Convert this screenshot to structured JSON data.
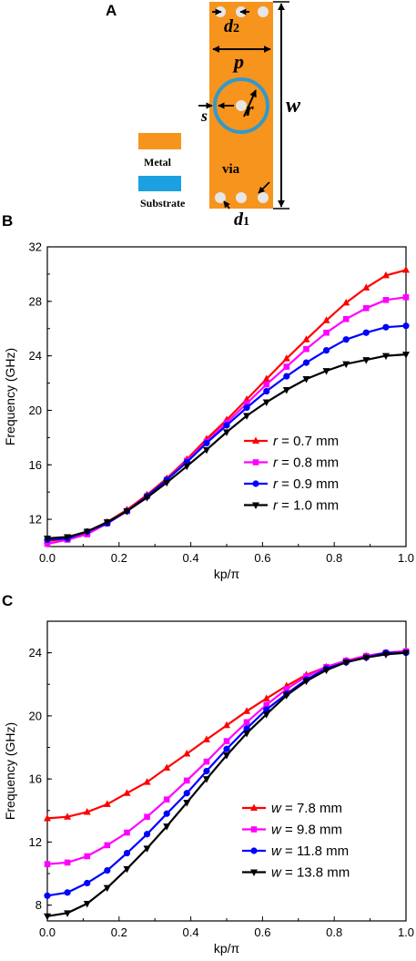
{
  "panels": {
    "a": "A",
    "b": "B",
    "c": "C"
  },
  "schematic": {
    "labels": {
      "d2": "d2",
      "p": "p",
      "r": "r",
      "s": "s",
      "w": "w",
      "via": "via",
      "d1": "d1"
    },
    "legend": [
      {
        "label": "Metal",
        "color": "#F7941D"
      },
      {
        "label": "Substrate",
        "color": "#1BA1E2"
      }
    ],
    "colors": {
      "metal": "#F7941D",
      "ring": "#3399CC",
      "via": "#E6E6E6"
    }
  },
  "chart_data": [
    {
      "type": "line",
      "panel": "B",
      "xlabel": "kp/π",
      "ylabel": "Frequency (GHz)",
      "xlim": [
        0.0,
        1.0
      ],
      "ylim": [
        10,
        32
      ],
      "xticks": [
        "0.0",
        "0.2",
        "0.4",
        "0.6",
        "0.8",
        "1.0"
      ],
      "yticks": [
        "12",
        "16",
        "20",
        "24",
        "28",
        "32"
      ],
      "legend_position": "bottom-right",
      "x": [
        0.0,
        0.056,
        0.111,
        0.167,
        0.222,
        0.278,
        0.333,
        0.389,
        0.444,
        0.5,
        0.556,
        0.611,
        0.667,
        0.722,
        0.778,
        0.833,
        0.889,
        0.944,
        1.0
      ],
      "series": [
        {
          "name": "r = 0.7 mm",
          "var": "r",
          "rest": " = 0.7 mm",
          "color": "#FF0000",
          "marker": "triangle-up",
          "values": [
            10.4,
            10.6,
            11.0,
            11.8,
            12.7,
            13.8,
            15.0,
            16.4,
            17.9,
            19.3,
            20.8,
            22.3,
            23.8,
            25.2,
            26.6,
            27.9,
            29.0,
            29.9,
            30.3
          ]
        },
        {
          "name": "r = 0.8 mm",
          "var": "r",
          "rest": " = 0.8 mm",
          "color": "#FF00FF",
          "marker": "square",
          "values": [
            10.2,
            10.5,
            10.9,
            11.7,
            12.6,
            13.7,
            14.9,
            16.3,
            17.7,
            19.1,
            20.5,
            21.9,
            23.2,
            24.5,
            25.7,
            26.7,
            27.5,
            28.1,
            28.3
          ]
        },
        {
          "name": "r = 0.9 mm",
          "var": "r",
          "rest": " = 0.9 mm",
          "color": "#0000FF",
          "marker": "circle",
          "values": [
            10.5,
            10.6,
            11.1,
            11.7,
            12.6,
            13.7,
            14.9,
            16.2,
            17.6,
            18.9,
            20.2,
            21.4,
            22.5,
            23.5,
            24.4,
            25.2,
            25.7,
            26.1,
            26.2
          ]
        },
        {
          "name": "r = 1.0 mm",
          "var": "r",
          "rest": " = 1.0 mm",
          "color": "#000000",
          "marker": "triangle-down",
          "values": [
            10.6,
            10.7,
            11.1,
            11.8,
            12.6,
            13.6,
            14.7,
            15.9,
            17.1,
            18.4,
            19.6,
            20.6,
            21.5,
            22.3,
            22.9,
            23.4,
            23.7,
            24.0,
            24.1
          ]
        }
      ]
    },
    {
      "type": "line",
      "panel": "C",
      "xlabel": "kp/π",
      "ylabel": "Frequency (GHz)",
      "xlim": [
        0.0,
        1.0
      ],
      "ylim": [
        7,
        26
      ],
      "xticks": [
        "0.0",
        "0.2",
        "0.4",
        "0.6",
        "0.8",
        "1.0"
      ],
      "yticks": [
        "8",
        "12",
        "16",
        "20",
        "24"
      ],
      "legend_position": "bottom-right",
      "x": [
        0.0,
        0.056,
        0.111,
        0.167,
        0.222,
        0.278,
        0.333,
        0.389,
        0.444,
        0.5,
        0.556,
        0.611,
        0.667,
        0.722,
        0.778,
        0.833,
        0.889,
        0.944,
        1.0
      ],
      "series": [
        {
          "name": "w = 7.8 mm",
          "var": "w",
          "rest": " = 7.8 mm",
          "color": "#FF0000",
          "marker": "triangle-up",
          "values": [
            13.5,
            13.6,
            13.9,
            14.4,
            15.1,
            15.8,
            16.7,
            17.6,
            18.5,
            19.4,
            20.3,
            21.1,
            21.9,
            22.6,
            23.1,
            23.5,
            23.8,
            24.0,
            24.1
          ]
        },
        {
          "name": "w = 9.8 mm",
          "var": "w",
          "rest": " = 9.8 mm",
          "color": "#FF00FF",
          "marker": "square",
          "values": [
            10.6,
            10.7,
            11.1,
            11.8,
            12.6,
            13.6,
            14.7,
            15.9,
            17.1,
            18.4,
            19.6,
            20.7,
            21.7,
            22.5,
            23.1,
            23.5,
            23.8,
            24.0,
            24.1
          ]
        },
        {
          "name": "w = 11.8 mm",
          "var": "w",
          "rest": " = 11.8 mm",
          "color": "#0000FF",
          "marker": "circle",
          "values": [
            8.6,
            8.8,
            9.4,
            10.2,
            11.3,
            12.5,
            13.8,
            15.1,
            16.5,
            17.9,
            19.2,
            20.4,
            21.4,
            22.3,
            23.0,
            23.4,
            23.7,
            24.0,
            24.0
          ]
        },
        {
          "name": "w = 13.8 mm",
          "var": "w",
          "rest": " = 13.8 mm",
          "color": "#000000",
          "marker": "triangle-down",
          "values": [
            7.3,
            7.5,
            8.1,
            9.1,
            10.3,
            11.6,
            13.0,
            14.5,
            16.0,
            17.5,
            18.9,
            20.1,
            21.3,
            22.2,
            22.9,
            23.4,
            23.7,
            23.9,
            24.0
          ]
        }
      ]
    }
  ]
}
